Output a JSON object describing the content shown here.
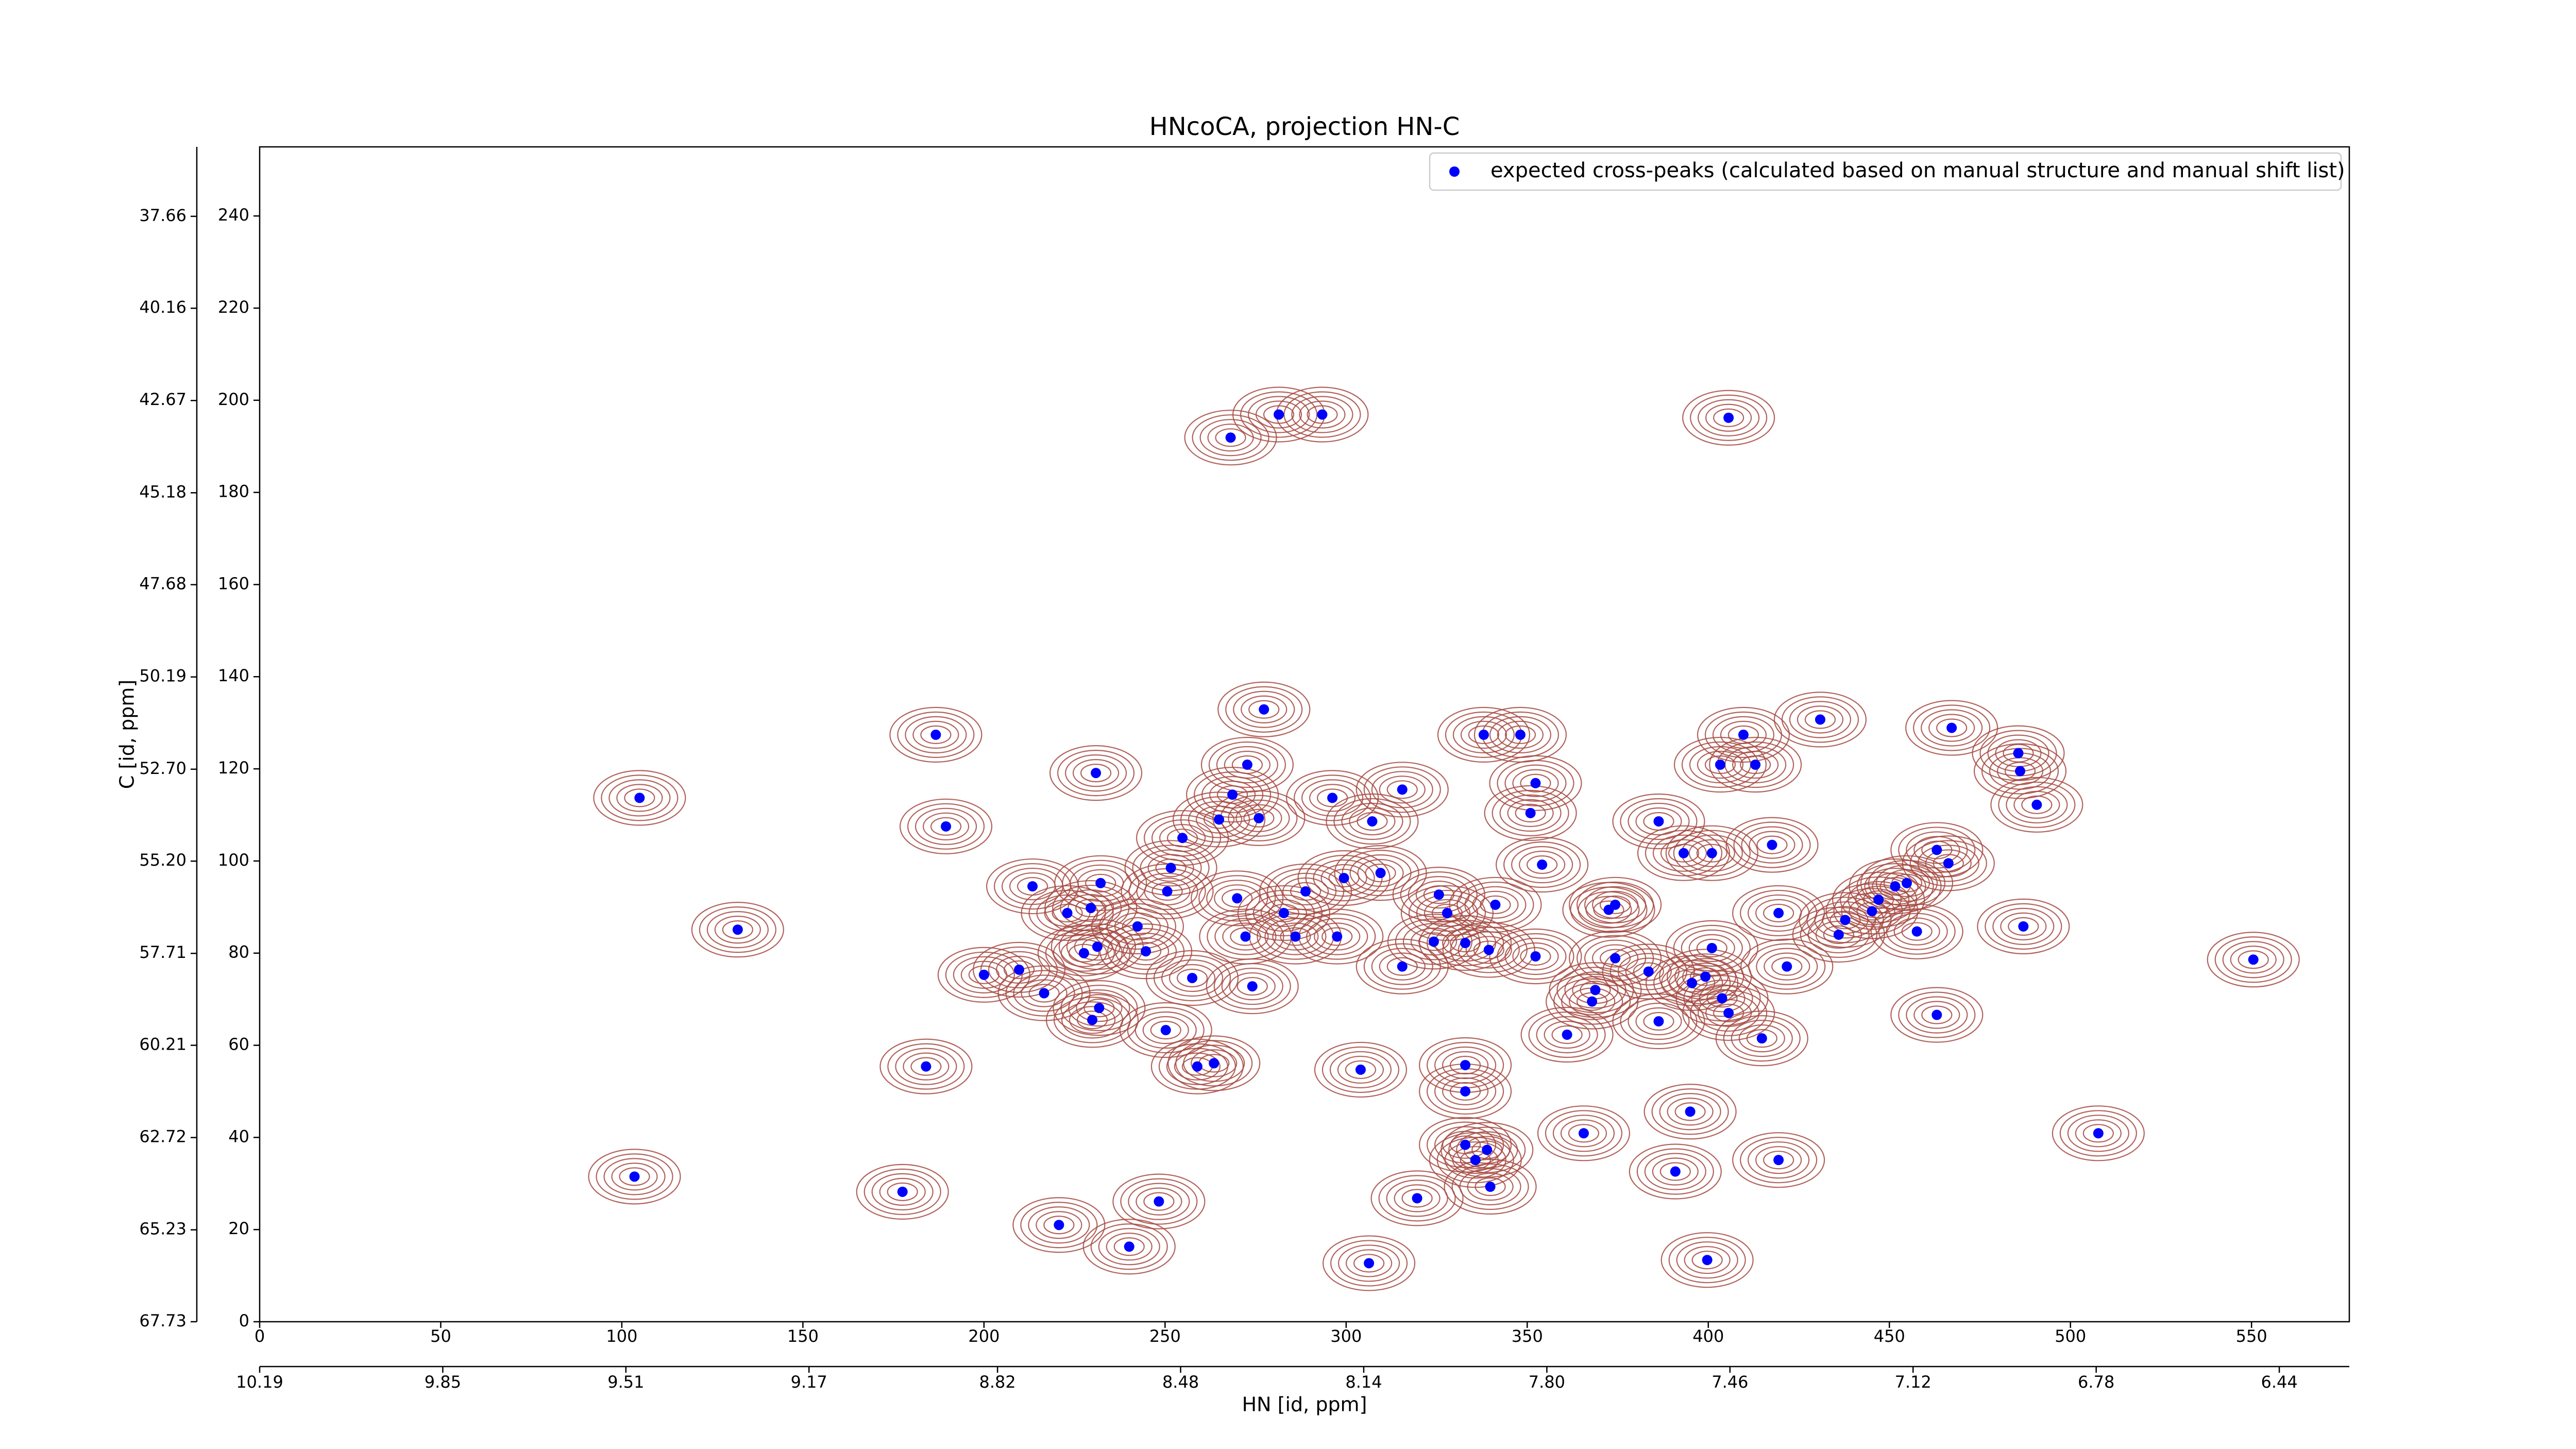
{
  "chart_data": {
    "type": "scatter",
    "title": "HNcoCA, projection HN-C",
    "xlabel": "HN [id, ppm]",
    "ylabel": "C [id, ppm]",
    "xlim": [
      0,
      577
    ],
    "ylim": [
      0,
      255
    ],
    "xticks": [
      0,
      50,
      100,
      150,
      200,
      250,
      300,
      350,
      400,
      450,
      500,
      550
    ],
    "yticks": [
      0,
      20,
      40,
      60,
      80,
      100,
      120,
      140,
      160,
      180,
      200,
      220,
      240
    ],
    "x2lim": [
      10.19,
      6.31
    ],
    "x2ticks": [
      10.19,
      9.85,
      9.51,
      9.17,
      8.82,
      8.48,
      8.14,
      {
        "value": 7.8,
        "label": "7.80"
      },
      7.46,
      7.12,
      6.78,
      6.44
    ],
    "y2lim": [
      67.73,
      35.77
    ],
    "y2ticks": [
      67.73,
      65.23,
      62.72,
      60.21,
      57.71,
      {
        "value": 55.2,
        "label": "55.20"
      },
      {
        "value": 52.7,
        "label": "52.70"
      },
      50.19,
      47.68,
      45.18,
      42.67,
      40.16,
      37.66
    ],
    "contour_color": "#a5483f",
    "legend_position": "upper right",
    "series": [
      {
        "name": "expected cross-peaks (calculated based on manual structure and manual shift list)",
        "color": "#0000ff",
        "x": [
          104.9,
          132.0,
          103.5,
          177.5,
          184.0,
          186.7,
          189.5,
          230.9,
          277.3,
          272.7,
          268.1,
          281.4,
          293.4,
          405.6,
          213.4,
          223.0,
          232.2,
          229.5,
          200.0,
          209.7,
          216.6,
          227.6,
          231.3,
          231.8,
          229.9,
          242.4,
          244.7,
          251.6,
          254.8,
          250.6,
          264.9,
          275.9,
          268.6,
          269.9,
          272.2,
          257.5,
          274.1,
          250.2,
          258.9,
          263.5,
          282.8,
          288.8,
          299.4,
          309.5,
          296.2,
          307.2,
          315.5,
          286.0,
          297.5,
          304.0,
          315.5,
          324.2,
          325.6,
          327.9,
          332.9,
          332.9,
          332.9,
          339.4,
          341.2,
          338.0,
          348.1,
          352.3,
          350.9,
          354.1,
          352.3,
          361.0,
          368.8,
          367.9,
          372.5,
          374.3,
          374.3,
          383.5,
          386.3,
          386.3,
          393.2,
          401.0,
          395.0,
          395.5,
          401.0,
          399.2,
          403.8,
          405.6,
          409.7,
          403.3,
          413.0,
          417.6,
          419.4,
          421.7,
          414.8,
          430.9,
          437.8,
          436.0,
          445.2,
          447.0,
          451.6,
          454.8,
          457.6,
          467.2,
          485.6,
          486.1,
          490.7,
          463.1,
          466.3,
          487.0,
          463.1,
          550.5,
          507.7,
          365.6,
          390.9,
          419.4,
          332.9,
          335.7,
          338.9,
          339.8,
          319.6,
          306.3,
          240.1,
          248.3,
          220.7,
          399.7
        ],
        "values": [
          113.7,
          85.1,
          31.5,
          28.2,
          55.4,
          127.4,
          107.5,
          119.1,
          132.9,
          120.9,
          191.9,
          196.9,
          196.9,
          196.2,
          94.5,
          88.7,
          95.2,
          89.8,
          75.3,
          76.4,
          71.3,
          80.0,
          81.4,
          68.1,
          65.5,
          85.8,
          80.4,
          98.5,
          105.0,
          93.4,
          109.0,
          109.3,
          114.4,
          91.9,
          83.6,
          74.6,
          72.8,
          63.3,
          55.4,
          56.1,
          88.7,
          93.4,
          96.3,
          97.4,
          113.7,
          108.6,
          115.5,
          83.6,
          83.6,
          54.7,
          77.1,
          82.5,
          92.7,
          88.7,
          82.2,
          55.7,
          50.0,
          80.7,
          90.5,
          127.4,
          127.4,
          116.9,
          110.4,
          99.2,
          79.3,
          62.3,
          72.0,
          69.5,
          89.4,
          90.5,
          78.9,
          76.0,
          65.2,
          108.6,
          101.7,
          101.7,
          45.6,
          73.5,
          81.1,
          74.9,
          70.2,
          67.0,
          127.4,
          120.9,
          120.9,
          103.5,
          88.7,
          77.1,
          61.5,
          130.7,
          87.2,
          84.0,
          89.1,
          91.6,
          94.5,
          95.2,
          84.7,
          128.9,
          123.4,
          119.5,
          112.2,
          102.4,
          99.5,
          85.8,
          66.6,
          78.6,
          40.9,
          40.9,
          32.6,
          35.1,
          38.4,
          35.1,
          37.3,
          29.3,
          26.8,
          12.7,
          16.3,
          26.1,
          21.0,
          13.4
        ]
      }
    ]
  }
}
